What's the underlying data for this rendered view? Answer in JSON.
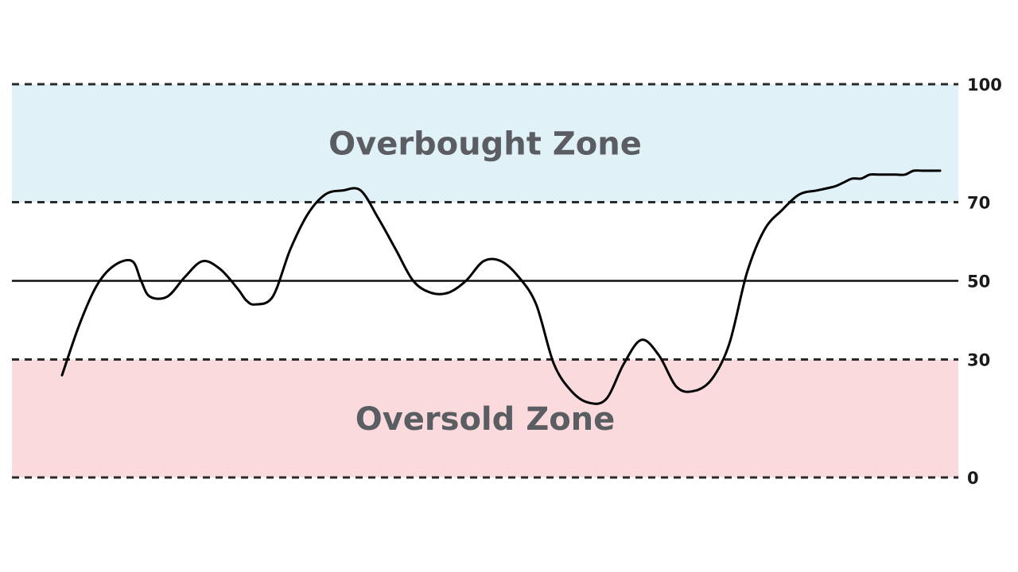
{
  "chart_data": {
    "type": "line",
    "title": "",
    "xlabel": "",
    "ylabel": "",
    "ylim": [
      0,
      100
    ],
    "yticks": [
      "100",
      "70",
      "50",
      "30",
      "0"
    ],
    "reference_lines": [
      {
        "value": 100,
        "style": "dashed"
      },
      {
        "value": 70,
        "style": "dashed"
      },
      {
        "value": 50,
        "style": "solid"
      },
      {
        "value": 30,
        "style": "dashed"
      },
      {
        "value": 0,
        "style": "dashed"
      }
    ],
    "zones": [
      {
        "label": "Overbought Zone",
        "from": 70,
        "to": 100,
        "color": "#e0f1f8"
      },
      {
        "label": "Oversold Zone",
        "from": 0,
        "to": 30,
        "color": "#fadadd"
      }
    ],
    "series": [
      {
        "x": [
          0,
          2,
          4,
          6,
          8,
          9,
          10,
          12,
          14,
          16,
          18,
          20,
          21,
          22,
          24,
          26,
          28,
          30,
          32,
          34,
          36,
          38,
          40,
          42,
          44,
          46,
          48,
          50,
          52,
          54,
          56,
          58,
          60,
          62,
          64,
          66,
          68,
          70,
          72,
          74,
          76,
          78,
          80,
          82,
          84,
          86,
          88,
          89,
          90,
          91,
          92,
          93,
          94,
          95,
          96,
          97,
          98,
          100
        ],
        "values": [
          26,
          39,
          49,
          54,
          55,
          50,
          46,
          46,
          51,
          55,
          53,
          48,
          45,
          44,
          46,
          58,
          67,
          72,
          73,
          73,
          66,
          58,
          50,
          47,
          47,
          50,
          55,
          55,
          51,
          44,
          29,
          22,
          19,
          20,
          29,
          35,
          31,
          23,
          22,
          25,
          34,
          52,
          63,
          68,
          72,
          73,
          74,
          75,
          76,
          76,
          77,
          77,
          77,
          77,
          77,
          78,
          78,
          78
        ]
      }
    ]
  }
}
